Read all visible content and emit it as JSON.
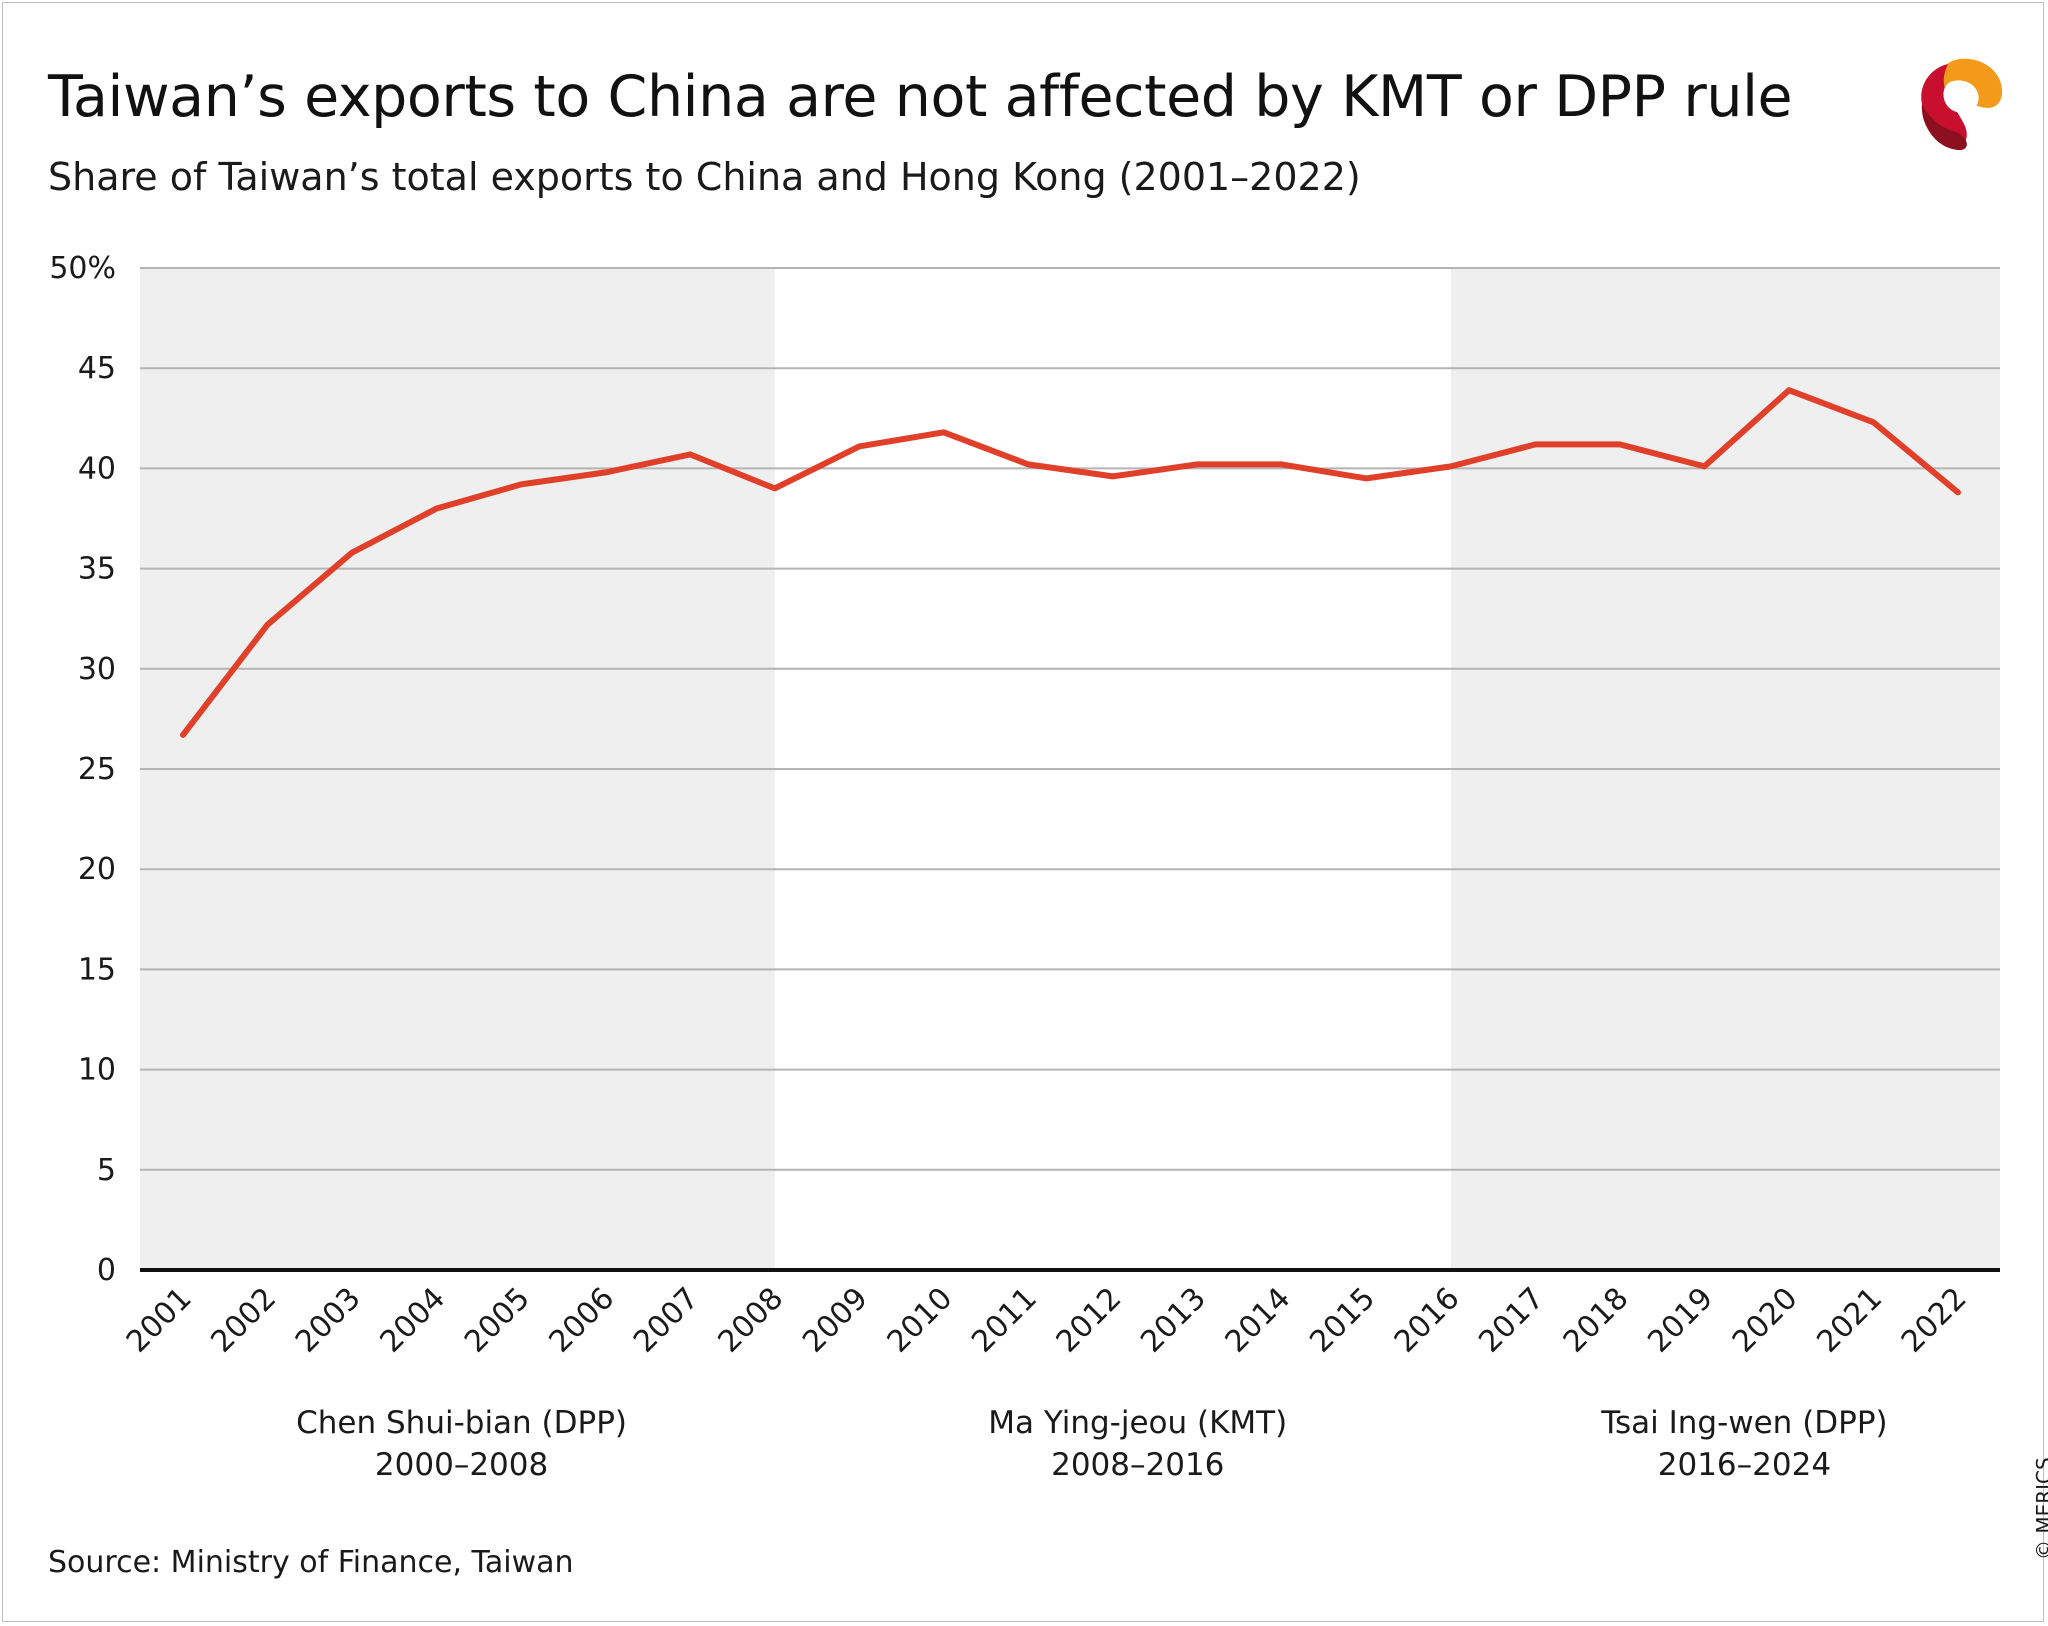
{
  "title": "Taiwan’s exports to China are not affected by KMT or DPP rule",
  "subtitle": "Share of Taiwan’s total exports to China and Hong Kong (2001–2022)",
  "source": "Source: Ministry of Finance, Taiwan",
  "copyright": "© MERICS",
  "colors": {
    "line": "#e0402a",
    "shade": "#efefef",
    "grid": "#b4b4b4",
    "baseline": "#111111"
  },
  "chart_data": {
    "type": "line",
    "title": "Taiwan’s exports to China are not affected by KMT or DPP rule",
    "subtitle": "Share of Taiwan’s total exports to China and Hong Kong (2001–2022)",
    "x": [
      "2001",
      "2002",
      "2003",
      "2004",
      "2005",
      "2006",
      "2007",
      "2008",
      "2009",
      "2010",
      "2011",
      "2012",
      "2013",
      "2014",
      "2015",
      "2016",
      "2017",
      "2018",
      "2019",
      "2020",
      "2021",
      "2022"
    ],
    "series": [
      {
        "values": [
          26.7,
          32.2,
          35.8,
          38.0,
          39.2,
          39.8,
          40.7,
          39.0,
          41.1,
          41.8,
          40.2,
          39.6,
          40.2,
          40.2,
          39.5,
          40.1,
          41.2,
          41.2,
          40.1,
          43.9,
          42.3,
          38.8
        ]
      }
    ],
    "yticks": [
      "0",
      "5",
      "10",
      "15",
      "20",
      "25",
      "30",
      "35",
      "40",
      "45",
      "50%"
    ],
    "ylim": [
      0,
      50
    ],
    "grid": true,
    "periods": [
      {
        "name": "Chen Shui-bian (DPP)",
        "years": "2000–2008",
        "shaded": true
      },
      {
        "name": "Ma Ying-jeou (KMT)",
        "years": "2008–2016",
        "shaded": false
      },
      {
        "name": "Tsai Ing-wen (DPP)",
        "years": "2016–2024",
        "shaded": true
      }
    ]
  }
}
